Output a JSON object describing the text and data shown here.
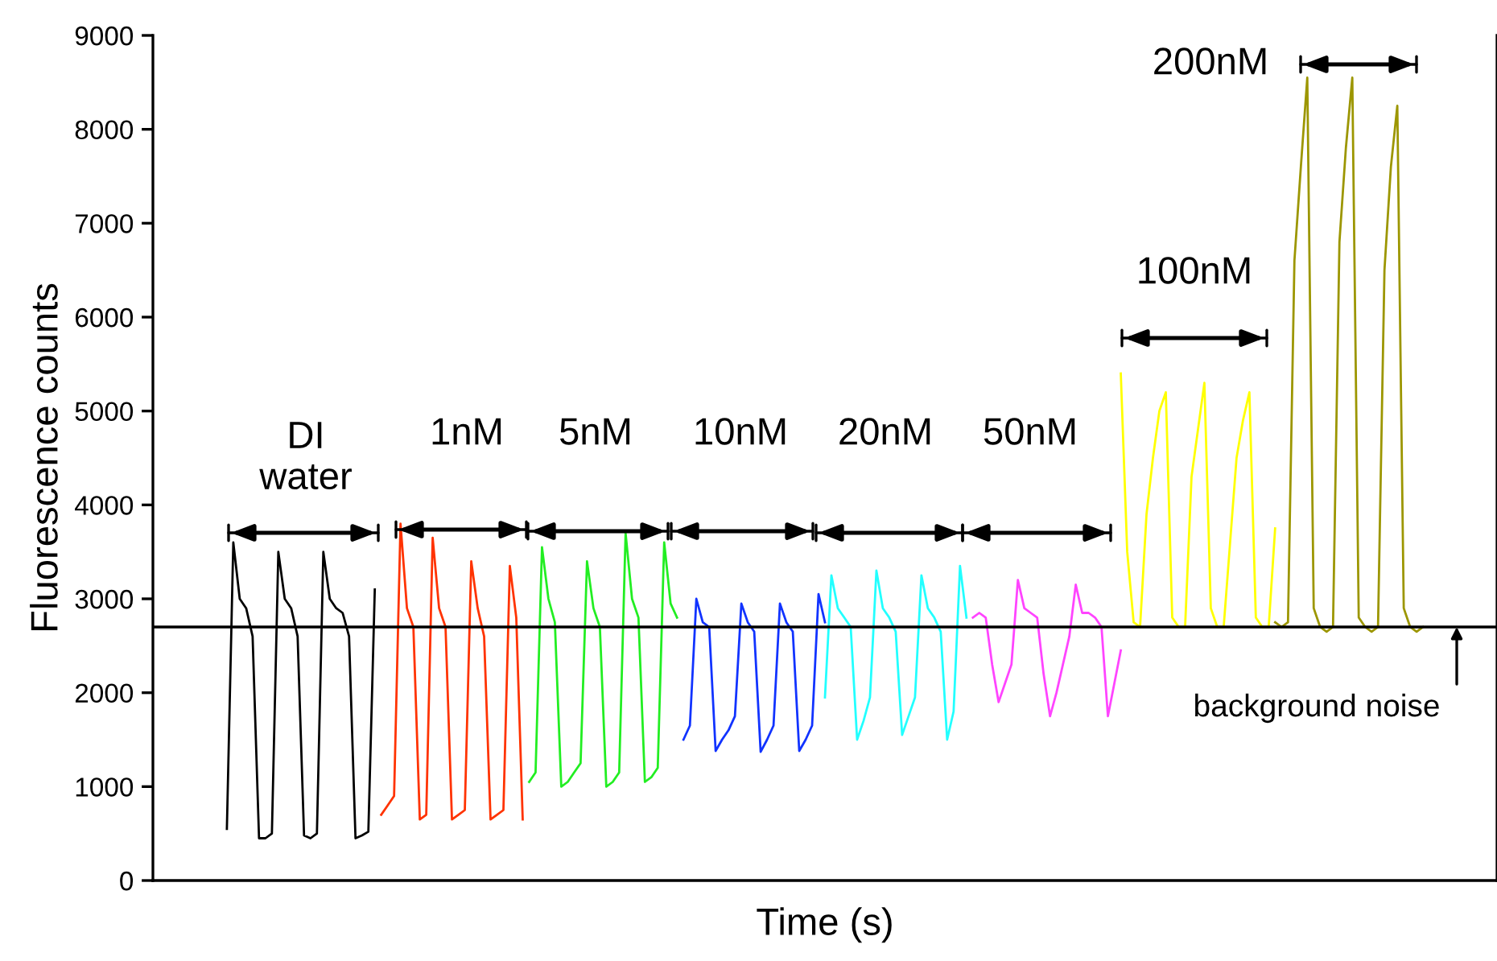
{
  "chart_data": {
    "type": "line",
    "xlabel": "Time (s)",
    "ylabel": "Fluorescence counts",
    "ylim": [
      0,
      9000
    ],
    "yticks": [
      0,
      1000,
      2000,
      3000,
      4000,
      5000,
      6000,
      7000,
      8000,
      9000
    ],
    "tick_labels": "y",
    "categories": [
      null,
      null,
      null,
      null,
      null,
      null,
      null,
      null,
      null,
      null,
      null,
      null,
      null,
      null,
      null,
      null,
      null,
      null,
      null,
      null,
      null,
      null,
      null,
      null,
      null,
      null,
      null,
      null,
      null,
      null,
      null,
      null,
      null,
      null,
      null,
      null,
      null,
      null,
      null,
      null,
      null,
      null,
      null,
      null,
      null,
      null,
      null,
      null,
      null,
      null,
      null,
      null,
      null,
      null,
      null,
      null,
      null,
      null,
      null,
      null,
      null,
      null,
      null,
      null,
      null,
      null,
      null,
      null,
      null,
      null,
      null,
      null,
      null,
      null,
      null,
      null,
      null,
      null,
      null,
      null,
      null,
      null,
      null,
      null,
      null,
      null,
      null,
      null,
      null,
      null,
      null,
      null,
      null,
      null,
      null,
      null,
      null,
      null,
      null,
      null,
      null,
      null,
      null,
      null,
      null,
      null,
      null,
      null,
      null,
      null,
      null,
      null,
      null,
      null,
      null,
      null,
      null,
      null,
      null,
      null,
      null,
      null,
      null,
      null,
      null,
      null,
      null,
      null,
      null,
      null,
      null,
      null,
      null,
      null,
      null,
      null,
      null,
      null,
      null,
      null,
      null,
      null,
      null,
      null,
      null,
      null,
      null,
      null,
      null,
      null,
      null,
      null,
      null,
      null,
      null,
      null,
      null,
      null,
      null,
      null,
      null,
      null,
      null,
      null,
      null,
      null,
      null,
      null,
      null,
      null,
      null,
      null,
      null,
      null,
      null,
      null,
      null,
      null,
      null,
      null,
      null,
      null,
      null,
      null,
      null,
      null,
      null,
      null,
      null,
      null,
      null,
      null,
      null,
      null,
      null,
      null,
      null,
      null,
      null,
      null,
      null,
      null,
      null,
      null,
      null,
      null,
      null,
      null,
      null
    ],
    "series": [
      {
        "color": "#000000",
        "values": [
          null,
          null,
          null,
          null,
          null,
          null,
          null,
          null,
          null,
          null,
          null,
          550,
          3600,
          3000,
          2900,
          2600,
          450,
          450,
          500,
          3500,
          3000,
          2900,
          2600,
          480,
          450,
          500,
          3500,
          3000,
          2900,
          2850,
          2600,
          450,
          480,
          520,
          3100,
          null,
          null,
          null,
          null,
          null,
          null,
          null,
          null,
          null,
          null,
          null,
          null,
          null,
          null,
          null,
          null,
          null,
          null,
          null,
          null,
          null,
          null,
          null,
          null,
          null,
          null,
          null,
          null,
          null,
          null,
          null,
          null,
          null,
          null,
          null,
          null,
          null,
          null,
          null,
          null,
          null,
          null,
          null,
          null,
          null,
          null,
          null,
          null,
          null,
          null,
          null,
          null,
          null,
          null,
          null,
          null,
          null,
          null,
          null,
          null,
          null,
          null,
          null,
          null,
          null,
          null,
          null,
          null,
          null,
          null,
          null,
          null,
          null,
          null,
          null,
          null,
          null,
          null,
          null,
          null,
          null,
          null,
          null,
          null,
          null,
          null,
          null,
          null,
          null,
          null,
          null,
          null,
          null,
          null,
          null,
          null,
          null,
          null,
          null,
          null,
          null,
          null,
          null,
          null,
          null,
          null,
          null,
          null,
          null,
          null,
          null,
          null,
          null,
          null,
          null,
          null,
          null,
          null,
          null,
          null,
          null,
          null,
          null,
          null,
          null,
          null,
          null,
          null,
          null,
          null,
          null,
          null,
          null,
          null,
          null,
          null,
          null,
          null,
          null,
          null,
          null,
          null,
          null,
          null,
          null,
          null,
          null,
          null,
          null,
          null,
          null,
          null,
          null,
          null,
          null,
          null,
          null,
          null,
          null,
          null,
          null,
          null,
          null,
          null,
          null,
          null,
          null,
          null,
          null,
          null,
          null,
          null,
          null,
          null
        ]
      },
      {
        "color": "#ff3300",
        "values": [
          null,
          null,
          null,
          null,
          null,
          null,
          null,
          null,
          null,
          null,
          null,
          null,
          null,
          null,
          null,
          null,
          null,
          null,
          null,
          null,
          null,
          null,
          null,
          null,
          null,
          null,
          null,
          null,
          null,
          null,
          null,
          null,
          null,
          null,
          null,
          700,
          800,
          900,
          3800,
          2900,
          2700,
          650,
          700,
          3650,
          2900,
          2700,
          650,
          700,
          750,
          3400,
          2900,
          2600,
          650,
          700,
          750,
          3350,
          2800,
          650,
          null,
          null,
          null,
          null,
          null,
          null,
          null,
          null,
          null,
          null,
          null,
          null,
          null,
          null,
          null,
          null,
          null,
          null,
          null,
          null,
          null,
          null,
          null,
          null,
          null,
          null,
          null,
          null,
          null,
          null,
          null,
          null,
          null,
          null,
          null,
          null,
          null,
          null,
          null,
          null,
          null,
          null,
          null,
          null,
          null,
          null,
          null,
          null,
          null,
          null,
          null,
          null,
          null,
          null,
          null,
          null,
          null,
          null,
          null,
          null,
          null,
          null,
          null,
          null,
          null,
          null,
          null,
          null,
          null,
          null,
          null,
          null,
          null,
          null,
          null,
          null,
          null,
          null,
          null,
          null,
          null,
          null,
          null,
          null,
          null,
          null,
          null,
          null,
          null,
          null,
          null,
          null,
          null,
          null,
          null,
          null,
          null,
          null,
          null,
          null,
          null,
          null,
          null,
          null,
          null,
          null,
          null,
          null,
          null,
          null,
          null,
          null,
          null,
          null,
          null,
          null,
          null,
          null,
          null,
          null,
          null,
          null,
          null,
          null,
          null,
          null,
          null,
          null,
          null,
          null,
          null,
          null,
          null,
          null,
          null,
          null,
          null,
          null,
          null,
          null,
          null,
          null,
          null,
          null,
          null,
          null,
          null,
          null,
          null,
          null,
          null
        ]
      },
      {
        "color": "#22ee22",
        "values": [
          null,
          null,
          null,
          null,
          null,
          null,
          null,
          null,
          null,
          null,
          null,
          null,
          null,
          null,
          null,
          null,
          null,
          null,
          null,
          null,
          null,
          null,
          null,
          null,
          null,
          null,
          null,
          null,
          null,
          null,
          null,
          null,
          null,
          null,
          null,
          null,
          null,
          null,
          null,
          null,
          null,
          null,
          null,
          null,
          null,
          null,
          null,
          null,
          null,
          null,
          null,
          null,
          null,
          null,
          null,
          null,
          null,
          null,
          1050,
          1150,
          3550,
          3000,
          2750,
          1000,
          1050,
          1150,
          1250,
          3400,
          2900,
          2700,
          1000,
          1050,
          1150,
          3700,
          3000,
          2800,
          1050,
          1100,
          1200,
          3600,
          2950,
          2800,
          null,
          null,
          null,
          null,
          null,
          null,
          null,
          null,
          null,
          null,
          null,
          null,
          null,
          null,
          null,
          null,
          null,
          null,
          null,
          null,
          null,
          null,
          null,
          null,
          null,
          null,
          null,
          null,
          null,
          null,
          null,
          null,
          null,
          null,
          null,
          null,
          null,
          null,
          null,
          null,
          null,
          null,
          null,
          null,
          null,
          null,
          null,
          null,
          null,
          null,
          null,
          null,
          null,
          null,
          null,
          null,
          null,
          null,
          null,
          null,
          null,
          null,
          null,
          null,
          null,
          null,
          null,
          null,
          null,
          null,
          null,
          null,
          null,
          null,
          null,
          null,
          null,
          null,
          null,
          null,
          null,
          null,
          null,
          null,
          null,
          null,
          null,
          null,
          null,
          null,
          null,
          null,
          null,
          null,
          null,
          null,
          null,
          null,
          null,
          null,
          null,
          null,
          null,
          null,
          null,
          null,
          null,
          null,
          null,
          null,
          null,
          null,
          null,
          null,
          null,
          null,
          null,
          null,
          null,
          null,
          null,
          null,
          null,
          null,
          null,
          null,
          null
        ]
      },
      {
        "color": "#1133ff",
        "values": [
          null,
          null,
          null,
          null,
          null,
          null,
          null,
          null,
          null,
          null,
          null,
          null,
          null,
          null,
          null,
          null,
          null,
          null,
          null,
          null,
          null,
          null,
          null,
          null,
          null,
          null,
          null,
          null,
          null,
          null,
          null,
          null,
          null,
          null,
          null,
          null,
          null,
          null,
          null,
          null,
          null,
          null,
          null,
          null,
          null,
          null,
          null,
          null,
          null,
          null,
          null,
          null,
          null,
          null,
          null,
          null,
          null,
          null,
          null,
          null,
          null,
          null,
          null,
          null,
          null,
          null,
          null,
          null,
          null,
          null,
          null,
          null,
          null,
          null,
          null,
          null,
          null,
          null,
          null,
          null,
          null,
          null,
          1500,
          1650,
          3000,
          2750,
          2700,
          1380,
          1500,
          1600,
          1750,
          2950,
          2750,
          2650,
          1370,
          1500,
          1650,
          2950,
          2750,
          2650,
          1380,
          1500,
          1650,
          3050,
          2750,
          null,
          null,
          null,
          null,
          null,
          null,
          null,
          null,
          null,
          null,
          null,
          null,
          null,
          null,
          null,
          null,
          null,
          null,
          null,
          null,
          null,
          null,
          null,
          null,
          null,
          null,
          null,
          null,
          null,
          null,
          null,
          null,
          null,
          null,
          null,
          null,
          null,
          null,
          null,
          null,
          null,
          null,
          null,
          null,
          null,
          null,
          null,
          null,
          null,
          null,
          null,
          null,
          null,
          null,
          null,
          null,
          null,
          null,
          null,
          null,
          null,
          null,
          null,
          null,
          null,
          null,
          null,
          null,
          null,
          null,
          null,
          null,
          null,
          null,
          null,
          null,
          null,
          null,
          null,
          null,
          null,
          null,
          null,
          null,
          null,
          null,
          null,
          null,
          null,
          null,
          null,
          null,
          null,
          null,
          null,
          null,
          null,
          null,
          null,
          null,
          null,
          null,
          null,
          null
        ]
      },
      {
        "color": "#22ffff",
        "values": [
          null,
          null,
          null,
          null,
          null,
          null,
          null,
          null,
          null,
          null,
          null,
          null,
          null,
          null,
          null,
          null,
          null,
          null,
          null,
          null,
          null,
          null,
          null,
          null,
          null,
          null,
          null,
          null,
          null,
          null,
          null,
          null,
          null,
          null,
          null,
          null,
          null,
          null,
          null,
          null,
          null,
          null,
          null,
          null,
          null,
          null,
          null,
          null,
          null,
          null,
          null,
          null,
          null,
          null,
          null,
          null,
          null,
          null,
          null,
          null,
          null,
          null,
          null,
          null,
          null,
          null,
          null,
          null,
          null,
          null,
          null,
          null,
          null,
          null,
          null,
          null,
          null,
          null,
          null,
          null,
          null,
          null,
          null,
          null,
          null,
          null,
          null,
          null,
          null,
          null,
          null,
          null,
          null,
          null,
          null,
          null,
          null,
          null,
          null,
          null,
          null,
          null,
          null,
          null,
          1950,
          3250,
          2900,
          2800,
          2700,
          1500,
          1700,
          1950,
          3300,
          2900,
          2800,
          2650,
          1550,
          1750,
          1950,
          3250,
          2900,
          2800,
          2650,
          1500,
          1800,
          3350,
          2800,
          null,
          null,
          null,
          null,
          null,
          null,
          null,
          null,
          null,
          null,
          null,
          null,
          null,
          null,
          null,
          null,
          null,
          null,
          null,
          null,
          null,
          null,
          null,
          null,
          null,
          null,
          null,
          null,
          null,
          null,
          null,
          null,
          null,
          null,
          null,
          null,
          null,
          null,
          null,
          null,
          null,
          null,
          null,
          null,
          null,
          null,
          null,
          null,
          null,
          null,
          null,
          null,
          null,
          null,
          null,
          null,
          null,
          null,
          null,
          null,
          null,
          null,
          null,
          null,
          null,
          null,
          null,
          null,
          null,
          null,
          null,
          null,
          null,
          null,
          null,
          null,
          null,
          null,
          null,
          null,
          null,
          null
        ]
      },
      {
        "color": "#ff44ff",
        "values": [
          null,
          null,
          null,
          null,
          null,
          null,
          null,
          null,
          null,
          null,
          null,
          null,
          null,
          null,
          null,
          null,
          null,
          null,
          null,
          null,
          null,
          null,
          null,
          null,
          null,
          null,
          null,
          null,
          null,
          null,
          null,
          null,
          null,
          null,
          null,
          null,
          null,
          null,
          null,
          null,
          null,
          null,
          null,
          null,
          null,
          null,
          null,
          null,
          null,
          null,
          null,
          null,
          null,
          null,
          null,
          null,
          null,
          null,
          null,
          null,
          null,
          null,
          null,
          null,
          null,
          null,
          null,
          null,
          null,
          null,
          null,
          null,
          null,
          null,
          null,
          null,
          null,
          null,
          null,
          null,
          null,
          null,
          null,
          null,
          null,
          null,
          null,
          null,
          null,
          null,
          null,
          null,
          null,
          null,
          null,
          null,
          null,
          null,
          null,
          null,
          null,
          null,
          null,
          null,
          null,
          null,
          null,
          null,
          null,
          null,
          null,
          null,
          null,
          null,
          null,
          null,
          null,
          null,
          null,
          null,
          null,
          null,
          null,
          null,
          null,
          null,
          null,
          2800,
          2850,
          2800,
          2300,
          1900,
          2100,
          2300,
          3200,
          2900,
          2850,
          2800,
          2200,
          1750,
          2000,
          2300,
          2600,
          3150,
          2850,
          2850,
          2800,
          2700,
          1750,
          2100,
          2450,
          null,
          null,
          null,
          null,
          null,
          null,
          null,
          null,
          null,
          null,
          null,
          null,
          null,
          null,
          null,
          null,
          null,
          null,
          null,
          null,
          null,
          null,
          null,
          null,
          null,
          null,
          null,
          null,
          null,
          null,
          null,
          null,
          null,
          null,
          null,
          null,
          null,
          null,
          null,
          null,
          null,
          null,
          null,
          null,
          null,
          null,
          null,
          null,
          null,
          null,
          null,
          null,
          null,
          null,
          null,
          null,
          null,
          null
        ]
      },
      {
        "color": "#ffff00",
        "values": [
          null,
          null,
          null,
          null,
          null,
          null,
          null,
          null,
          null,
          null,
          null,
          null,
          null,
          null,
          null,
          null,
          null,
          null,
          null,
          null,
          null,
          null,
          null,
          null,
          null,
          null,
          null,
          null,
          null,
          null,
          null,
          null,
          null,
          null,
          null,
          null,
          null,
          null,
          null,
          null,
          null,
          null,
          null,
          null,
          null,
          null,
          null,
          null,
          null,
          null,
          null,
          null,
          null,
          null,
          null,
          null,
          null,
          null,
          null,
          null,
          null,
          null,
          null,
          null,
          null,
          null,
          null,
          null,
          null,
          null,
          null,
          null,
          null,
          null,
          null,
          null,
          null,
          null,
          null,
          null,
          null,
          null,
          null,
          null,
          null,
          null,
          null,
          null,
          null,
          null,
          null,
          null,
          null,
          null,
          null,
          null,
          null,
          null,
          null,
          null,
          null,
          null,
          null,
          null,
          null,
          null,
          null,
          null,
          null,
          null,
          null,
          null,
          null,
          null,
          null,
          null,
          null,
          null,
          null,
          null,
          null,
          null,
          null,
          null,
          null,
          null,
          null,
          null,
          null,
          null,
          null,
          null,
          null,
          null,
          null,
          null,
          null,
          null,
          null,
          null,
          null,
          null,
          null,
          null,
          null,
          null,
          null,
          null,
          null,
          null,
          5400,
          3500,
          2750,
          2700,
          3900,
          4500,
          5000,
          5200,
          2800,
          2700,
          2700,
          4300,
          4800,
          5300,
          2900,
          2700,
          2700,
          3600,
          4500,
          4900,
          5200,
          2800,
          2700,
          2700,
          3750,
          null,
          null,
          null,
          null,
          null,
          null,
          null,
          null,
          null,
          null,
          null,
          null,
          null,
          null,
          null,
          null,
          null,
          null,
          null,
          null,
          null,
          null,
          null,
          null,
          null,
          null,
          null,
          null,
          null,
          null,
          null,
          null,
          null,
          null
        ]
      },
      {
        "color": "#9c9600",
        "values": [
          null,
          null,
          null,
          null,
          null,
          null,
          null,
          null,
          null,
          null,
          null,
          null,
          null,
          null,
          null,
          null,
          null,
          null,
          null,
          null,
          null,
          null,
          null,
          null,
          null,
          null,
          null,
          null,
          null,
          null,
          null,
          null,
          null,
          null,
          null,
          null,
          null,
          null,
          null,
          null,
          null,
          null,
          null,
          null,
          null,
          null,
          null,
          null,
          null,
          null,
          null,
          null,
          null,
          null,
          null,
          null,
          null,
          null,
          null,
          null,
          null,
          null,
          null,
          null,
          null,
          null,
          null,
          null,
          null,
          null,
          null,
          null,
          null,
          null,
          null,
          null,
          null,
          null,
          null,
          null,
          null,
          null,
          null,
          null,
          null,
          null,
          null,
          null,
          null,
          null,
          null,
          null,
          null,
          null,
          null,
          null,
          null,
          null,
          null,
          null,
          null,
          null,
          null,
          null,
          null,
          null,
          null,
          null,
          null,
          null,
          null,
          null,
          null,
          null,
          null,
          null,
          null,
          null,
          null,
          null,
          null,
          null,
          null,
          null,
          null,
          null,
          null,
          null,
          null,
          null,
          null,
          null,
          null,
          null,
          null,
          null,
          null,
          null,
          null,
          null,
          null,
          null,
          null,
          null,
          null,
          null,
          null,
          null,
          null,
          null,
          null,
          null,
          null,
          null,
          null,
          null,
          null,
          null,
          null,
          null,
          null,
          null,
          null,
          null,
          null,
          null,
          null,
          null,
          null,
          null,
          null,
          null,
          null,
          null,
          2750,
          2700,
          2750,
          6600,
          7600,
          8550,
          2900,
          2700,
          2650,
          2700,
          6800,
          7800,
          8550,
          2800,
          2700,
          2650,
          2700,
          6500,
          7600,
          8250,
          2900,
          2700,
          2650,
          2700,
          null,
          null,
          null,
          null,
          null,
          null,
          null,
          null,
          null,
          null,
          null
        ]
      }
    ],
    "ref_lines": [
      {
        "axis": "y",
        "value": 2700,
        "label": "background noise",
        "color": "#000000"
      }
    ],
    "annotations": [
      "DI\nwater",
      "1nM",
      "5nM",
      "10nM",
      "20nM",
      "50nM",
      "100nM",
      "200nM"
    ]
  }
}
